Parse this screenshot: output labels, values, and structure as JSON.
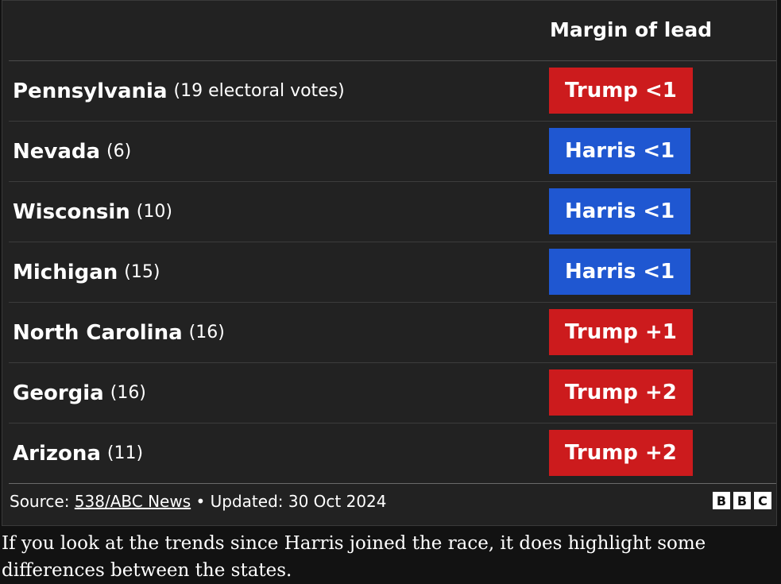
{
  "table": {
    "header": "Margin of lead",
    "rows": [
      {
        "state": "Pennsylvania",
        "votes": "(19 electoral votes)",
        "lead": "Trump <1",
        "party_color": "#cc1b1d"
      },
      {
        "state": "Nevada",
        "votes": "(6)",
        "lead": "Harris <1",
        "party_color": "#1f57d1"
      },
      {
        "state": "Wisconsin",
        "votes": "(10)",
        "lead": "Harris <1",
        "party_color": "#1f57d1"
      },
      {
        "state": "Michigan",
        "votes": "(15)",
        "lead": "Harris <1",
        "party_color": "#1f57d1"
      },
      {
        "state": "North Carolina",
        "votes": "(16)",
        "lead": "Trump +1",
        "party_color": "#cc1b1d"
      },
      {
        "state": "Georgia",
        "votes": "(16)",
        "lead": "Trump +2",
        "party_color": "#cc1b1d"
      },
      {
        "state": "Arizona",
        "votes": "(11)",
        "lead": "Trump +2",
        "party_color": "#cc1b1d"
      }
    ]
  },
  "footer": {
    "source_prefix": "Source:",
    "source_link": "538/ABC News",
    "updated": "• Updated: 30 Oct 2024",
    "logo_letters": [
      "B",
      "B",
      "C"
    ]
  },
  "caption": "If you look at the trends since Harris joined the race, it does highlight some differences between the states.",
  "colors": {
    "background": "#222222",
    "page": "#121212",
    "trump": "#cc1b1d",
    "harris": "#1f57d1"
  }
}
